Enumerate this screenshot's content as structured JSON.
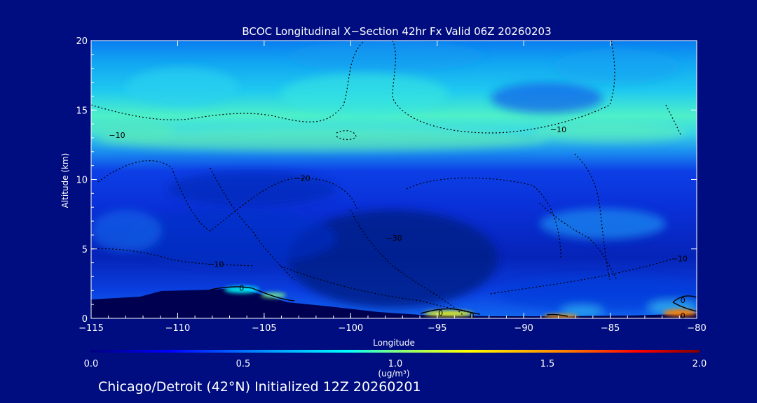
{
  "chart_data": {
    "type": "heatmap",
    "title": "BCOC Longitudinal X−Section 42hr  Fx Valid 06Z 20260203",
    "xlabel": "Longitude",
    "ylabel": "Altitude (km)",
    "xlim": [
      -115,
      -80
    ],
    "ylim": [
      0,
      20
    ],
    "x_ticks": [
      -115,
      -110,
      -105,
      -100,
      -95,
      -90,
      -85,
      -80
    ],
    "x_tick_labels": [
      "−115",
      "−110",
      "−105",
      "−100",
      "−95",
      "−90",
      "−85",
      "−80"
    ],
    "y_ticks": [
      0,
      5,
      10,
      15,
      20
    ],
    "y_tick_labels": [
      "0",
      "5",
      "10",
      "15",
      "20"
    ],
    "colorbar": {
      "min": 0.0,
      "max": 2.0,
      "ticks": [
        0.0,
        0.5,
        1.0,
        1.5,
        2.0
      ],
      "tick_labels": [
        "0.0",
        "0.5",
        "1.0",
        "1.5",
        "2.0"
      ],
      "unit_label": "(ug/m³)",
      "colors": [
        "#000080",
        "#0000ff",
        "#00a0ff",
        "#00ffff",
        "#80ff80",
        "#ffff00",
        "#ff8000",
        "#ff0000",
        "#800000"
      ]
    },
    "contour_labels": [
      {
        "text": "−10",
        "x": -113.5,
        "y": 13.2
      },
      {
        "text": "−20",
        "x": -102.8,
        "y": 10.1
      },
      {
        "text": "−10",
        "x": -88.0,
        "y": 13.6
      },
      {
        "text": "−30",
        "x": -97.5,
        "y": 5.8
      },
      {
        "text": "−10",
        "x": -107.8,
        "y": 3.9
      },
      {
        "text": "−10",
        "x": -81.0,
        "y": 4.3
      },
      {
        "text": "0",
        "x": -106.3,
        "y": 2.2
      },
      {
        "text": "0",
        "x": -80.8,
        "y": 1.3
      },
      {
        "text": "0",
        "x": -80.8,
        "y": 0.2
      },
      {
        "text": "0",
        "x": -94.8,
        "y": 0.4
      },
      {
        "text": "0",
        "x": -93.0,
        "y": 0.2
      }
    ],
    "grid": false,
    "legend": "bottom (colorbar)",
    "footer": "Chicago/Detroit (42°N) Initialized 12Z 20260201"
  }
}
